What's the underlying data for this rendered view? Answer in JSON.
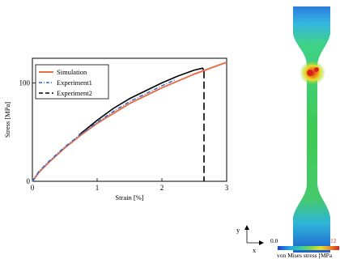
{
  "chart_data": {
    "type": "line",
    "title": "",
    "xlabel": "Strain [%]",
    "ylabel": "Stress [MPa]",
    "xlim": [
      0,
      3
    ],
    "ylim": [
      0,
      125
    ],
    "xticks": [
      "0",
      "1",
      "2",
      "3"
    ],
    "yticks": [
      "0",
      "100"
    ],
    "grid": false,
    "legend_position": "top-left",
    "series": [
      {
        "name": "Simulation",
        "style": "solid",
        "color": "#e8704a",
        "x": [
          0,
          0.1,
          0.25,
          0.5,
          0.75,
          1.0,
          1.25,
          1.5,
          1.75,
          2.0,
          2.25,
          2.5,
          2.75,
          3.0
        ],
        "y": [
          0,
          9,
          19,
          34,
          47,
          59,
          69,
          79,
          87,
          95,
          102,
          109,
          115,
          121
        ]
      },
      {
        "name": "Experiment1",
        "style": "dash-dot",
        "color": "#2e6fd1",
        "x": [
          0,
          0.1,
          0.25,
          0.5,
          0.75,
          1.0,
          1.25,
          1.5,
          1.75,
          2.0,
          2.2
        ],
        "y": [
          0,
          10,
          20,
          35,
          48,
          60,
          71,
          81,
          89,
          97,
          103
        ]
      },
      {
        "name": "Experiment2",
        "style": "dashed",
        "color": "#000000",
        "x": [
          0.72,
          1.0,
          1.25,
          1.5,
          1.75,
          2.0,
          2.25,
          2.5,
          2.63,
          2.65,
          2.65
        ],
        "y": [
          47,
          62,
          74,
          84,
          92,
          100,
          107,
          113,
          115,
          112,
          0
        ]
      }
    ]
  },
  "contour": {
    "colorbar_min": "0.0",
    "colorbar_max": "12",
    "colorbar_label": "von Mises stress [MPa",
    "colors": [
      "#1a3fd6",
      "#22a8e8",
      "#3ed28a",
      "#8fd63a",
      "#e6e02a",
      "#f08a1e",
      "#d62418"
    ]
  },
  "axes_indicator": {
    "y_label": "y",
    "x_label": "x"
  }
}
